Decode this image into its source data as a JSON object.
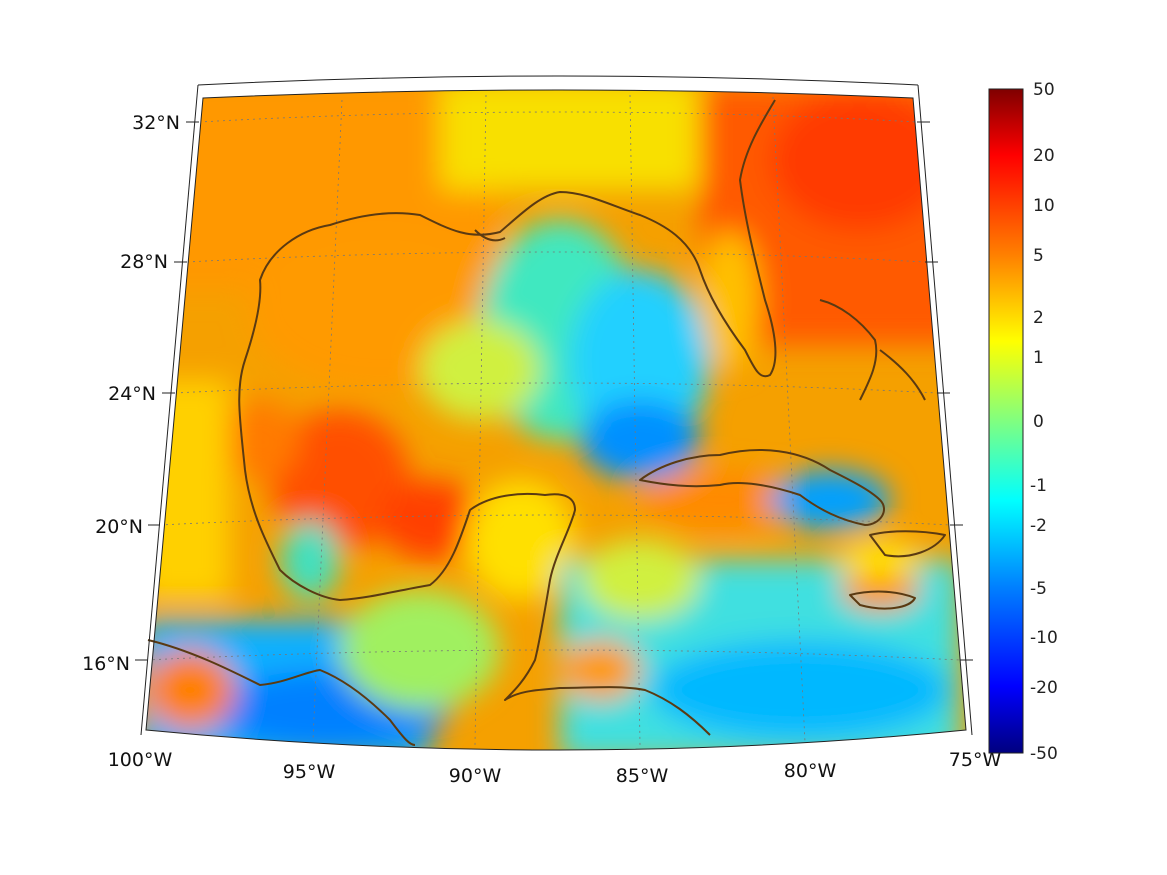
{
  "map": {
    "projection": "conic",
    "lon_range": [
      -100,
      -75
    ],
    "lat_range": [
      14,
      33
    ],
    "lon_tick_labels": [
      "100°W",
      "95°W",
      "90°W",
      "85°W",
      "80°W",
      "75°W"
    ],
    "lat_tick_labels": [
      "16°N",
      "20°N",
      "24°N",
      "28°N",
      "32°N"
    ],
    "coastline_color": "#5a3a12",
    "gridlines": "dotted"
  },
  "colorbar": {
    "colormap": "jet",
    "tick_labels": [
      "50",
      "20",
      "10",
      "5",
      "2",
      "1",
      "0",
      "-1",
      "-2",
      "-5",
      "-10",
      "-20",
      "-50"
    ]
  }
}
